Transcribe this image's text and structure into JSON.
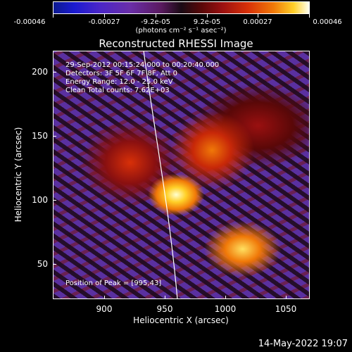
{
  "colorbar": {
    "ticks": [
      "-0.00046",
      "-0.00027",
      "-9.2e-05",
      "9.2e-05",
      "0.00027",
      "0.00046"
    ],
    "units": "(photons cm⁻² s⁻¹ asec⁻²)",
    "colors": [
      "#0d1a8f",
      "#6a2ea8",
      "#1a0a14",
      "#d83008",
      "#ffd028",
      "#fffff0"
    ]
  },
  "title": "Reconstructed RHESSI Image",
  "info": {
    "line1": "29-Sep-2012 00:15:24.000 to 00:20:40.000",
    "line2": "Detectors: 3F 5F 6F 7F 8F, Att 0",
    "line3": "Energy Range: 12.0 - 25.0 keV",
    "line4": "Clean     Total counts: 7.62E+03",
    "peak": "Position of Peak = [995,43]"
  },
  "axes": {
    "x_title": "Heliocentric X (arcsec)",
    "y_title": "Heliocentric Y (arcsec)",
    "x_ticks": [
      "900",
      "950",
      "1000",
      "1050"
    ],
    "y_ticks": [
      "200",
      "150",
      "100",
      "50"
    ],
    "xlim": [
      862,
      1052
    ],
    "ylim": [
      22,
      215
    ]
  },
  "footer": {
    "date": "14-May-2022 19:07"
  }
}
